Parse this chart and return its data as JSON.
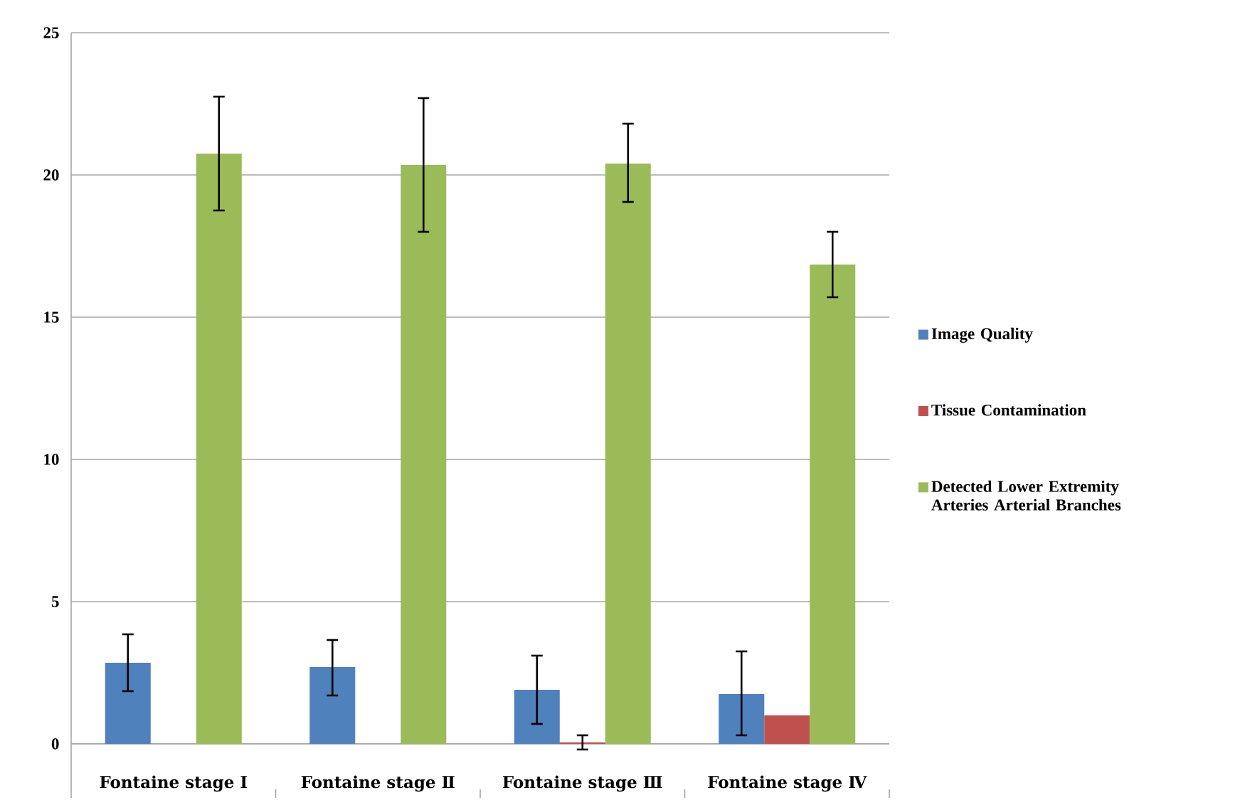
{
  "chart_data": {
    "type": "bar",
    "categories": [
      "Fontaine stage Ⅰ",
      "Fontaine stage Ⅱ",
      "Fontaine stage Ⅲ",
      "Fontaine stage Ⅳ"
    ],
    "series": [
      {
        "name": "Image Quality",
        "color": "#4f81bd",
        "values": [
          2.85,
          2.7,
          1.9,
          1.75
        ],
        "errors": [
          [
            1.85,
            3.85
          ],
          [
            1.7,
            3.65
          ],
          [
            0.7,
            3.1
          ],
          [
            0.3,
            3.25
          ]
        ]
      },
      {
        "name": "Tissue Contamination",
        "color": "#c0504d",
        "values": [
          null,
          null,
          0.05,
          1.0
        ],
        "errors": [
          null,
          null,
          [
            -0.2,
            0.3
          ],
          null
        ]
      },
      {
        "name": "Detected Lower Extremity Arteries Arterial Branches",
        "color": "#9bbb59",
        "values": [
          20.75,
          20.35,
          20.4,
          16.85
        ],
        "errors": [
          [
            18.75,
            22.75
          ],
          [
            18.0,
            22.7
          ],
          [
            19.05,
            21.8
          ],
          [
            15.7,
            18.0
          ]
        ]
      }
    ],
    "ylim": [
      -1.6,
      25
    ],
    "yticks": [
      0,
      5,
      10,
      15,
      20,
      25
    ],
    "grid": "y",
    "legend": "right"
  }
}
